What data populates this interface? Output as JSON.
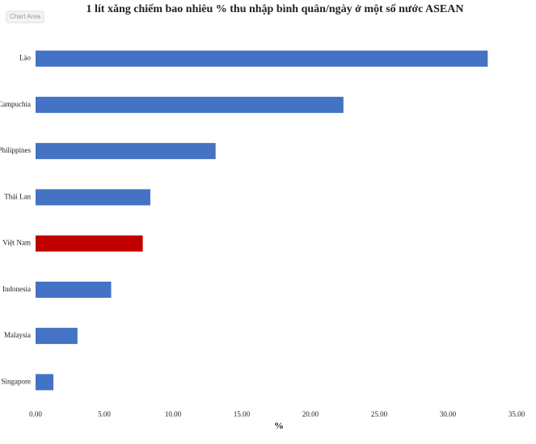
{
  "chart_data": {
    "type": "hbar",
    "title": "1 lít xăng chiếm bao nhiêu % thu nhập bình quân/ngày ở một số nước ASEAN",
    "tooltip": "Chart Area",
    "x_label": "%",
    "categories": [
      "Lào",
      "Campuchia",
      "Philippines",
      "Thái Lan",
      "Việt Nam",
      "Indonesia",
      "Malaysia",
      "Singapore"
    ],
    "values": [
      32.9,
      22.4,
      13.1,
      8.35,
      7.8,
      5.5,
      3.05,
      1.3
    ],
    "colors": [
      "#4472c4",
      "#4472c4",
      "#4472c4",
      "#4472c4",
      "#c00000",
      "#4472c4",
      "#4472c4",
      "#4472c4"
    ],
    "xlim": [
      0,
      35
    ],
    "xticks": [
      {
        "value": 0,
        "label": "0.00"
      },
      {
        "value": 5,
        "label": "5.00"
      },
      {
        "value": 10,
        "label": "10.00"
      },
      {
        "value": 15,
        "label": "15.00"
      },
      {
        "value": 20,
        "label": "20.00"
      },
      {
        "value": 25,
        "label": "25.00"
      },
      {
        "value": 30,
        "label": "30.00"
      },
      {
        "value": 35,
        "label": "35.00"
      }
    ],
    "grid": false
  }
}
